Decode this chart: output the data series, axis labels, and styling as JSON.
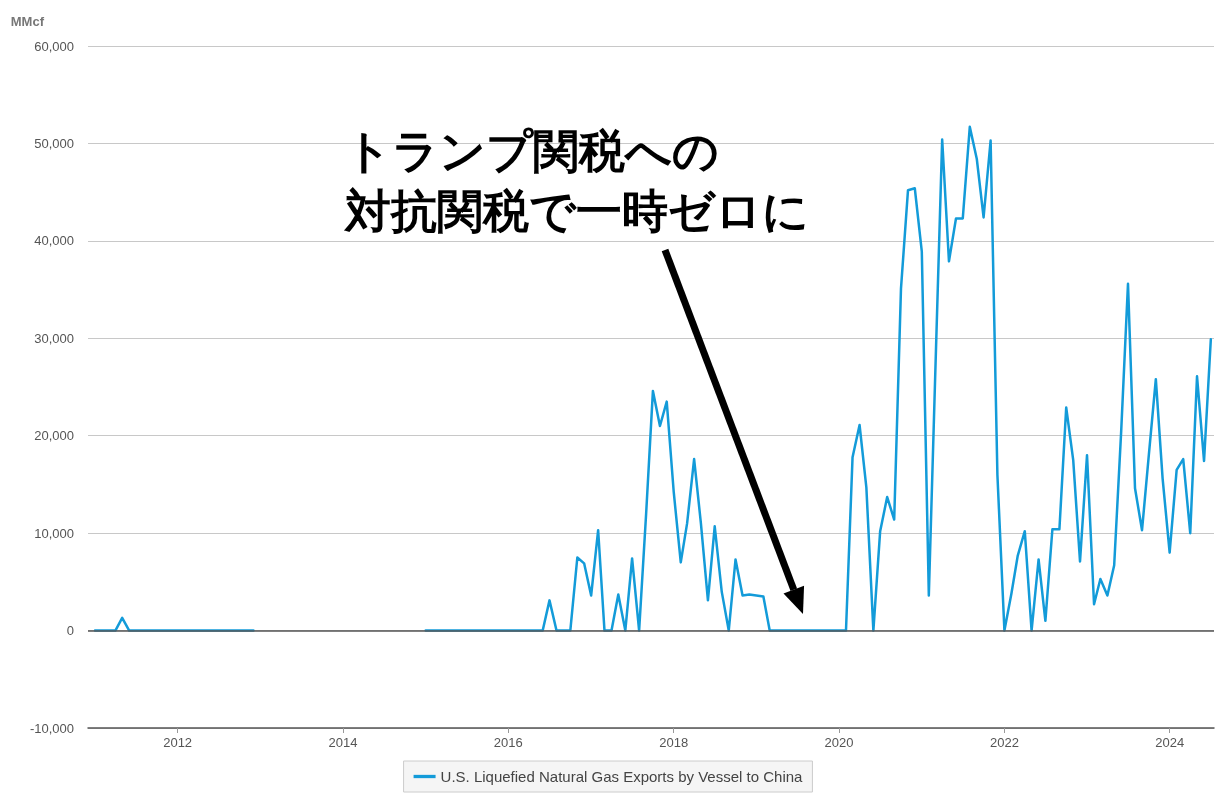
{
  "chart_data": {
    "type": "line",
    "ylabel": "MMcf",
    "annotations": [
      "トランプ関税への",
      "対抗関税で一時ゼロに"
    ],
    "series": [
      {
        "name": "U.S. Liquefied Natural Gas Exports by Vessel to China",
        "color": "#139bd9",
        "x": [
          "2011-01",
          "2011-04",
          "2011-05",
          "2011-06",
          "2012-12",
          "2013-06",
          "2015-01",
          "2016-06",
          "2016-07",
          "2016-08",
          "2016-10",
          "2016-11",
          "2016-12",
          "2017-01",
          "2017-02",
          "2017-03",
          "2017-04",
          "2017-05",
          "2017-06",
          "2017-07",
          "2017-08",
          "2017-09",
          "2017-10",
          "2017-11",
          "2017-12",
          "2018-01",
          "2018-02",
          "2018-03",
          "2018-04",
          "2018-05",
          "2018-06",
          "2018-07",
          "2018-08",
          "2018-09",
          "2018-10",
          "2018-11",
          "2018-12",
          "2019-01",
          "2019-02",
          "2019-03",
          "2020-02",
          "2020-03",
          "2020-04",
          "2020-05",
          "2020-06",
          "2020-07",
          "2020-08",
          "2020-09",
          "2020-10",
          "2020-11",
          "2020-12",
          "2021-01",
          "2021-02",
          "2021-03",
          "2021-04",
          "2021-05",
          "2021-06",
          "2021-07",
          "2021-08",
          "2021-09",
          "2021-10",
          "2021-11",
          "2021-12",
          "2022-01",
          "2022-02",
          "2022-03",
          "2022-04",
          "2022-05",
          "2022-06",
          "2022-07",
          "2022-08",
          "2022-09",
          "2022-10",
          "2022-11",
          "2022-12",
          "2023-01",
          "2023-02",
          "2023-03",
          "2023-04",
          "2023-05",
          "2023-06",
          "2023-07",
          "2023-08",
          "2023-09",
          "2023-10",
          "2023-11",
          "2023-12",
          "2024-01",
          "2024-02",
          "2024-03",
          "2024-04",
          "2024-05",
          "2024-06",
          "2024-07"
        ],
        "values": [
          0,
          0,
          1300,
          0,
          0,
          null,
          0,
          0,
          3100,
          0,
          0,
          7500,
          6900,
          3600,
          10300,
          0,
          0,
          3700,
          0,
          7400,
          0,
          12000,
          24600,
          21000,
          23500,
          14200,
          7000,
          11000,
          17600,
          11000,
          3100,
          10700,
          4000,
          0,
          7300,
          3600,
          3700,
          3600,
          3500,
          0,
          0,
          17800,
          21100,
          14700,
          0,
          10200,
          13700,
          11400,
          35100,
          45200,
          45400,
          38900,
          3600,
          26000,
          50400,
          37900,
          42300,
          42300,
          51700,
          48400,
          42400,
          50300,
          16000,
          0,
          3800,
          7700,
          10200,
          0,
          7300,
          1000,
          10400,
          10400,
          22900,
          17500,
          7100,
          18000,
          2700,
          5300,
          3600,
          6700,
          20500,
          35600,
          14600,
          10300,
          18000,
          25800,
          15600,
          8000,
          16500,
          17600,
          10000,
          26100,
          17400,
          29900
        ]
      }
    ],
    "xlim": [
      "2010-12",
      "2024-07-15"
    ],
    "xticks": [
      "2012",
      "2014",
      "2016",
      "2018",
      "2020",
      "2022",
      "2024"
    ],
    "ylim": [
      -10000,
      60000
    ],
    "yticks": [
      {
        "value": -10000,
        "label": "-10,000"
      },
      0,
      {
        "value": 10000,
        "label": "10,000"
      },
      {
        "value": 20000,
        "label": "20,000"
      },
      {
        "value": 30000,
        "label": "30,000"
      },
      {
        "value": 40000,
        "label": "40,000"
      },
      {
        "value": 50000,
        "label": "50,000"
      },
      {
        "value": 60000,
        "label": "60,000"
      }
    ],
    "grid": "y",
    "legend": "bottom",
    "marker": "none",
    "line_style": "solid"
  }
}
